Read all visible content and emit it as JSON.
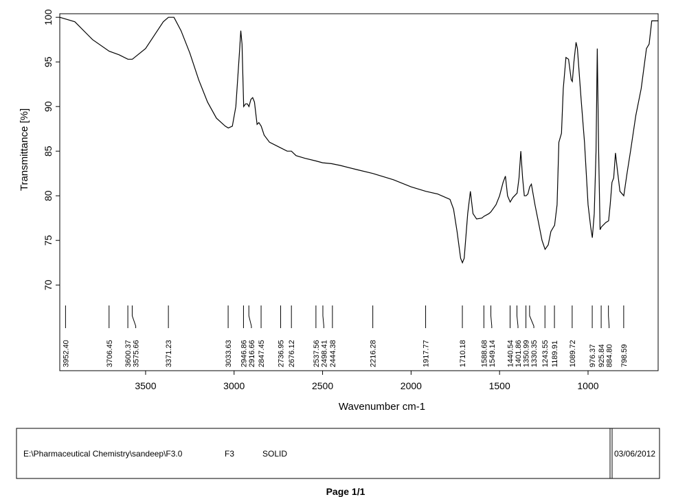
{
  "chart_data": {
    "type": "line",
    "x_label": "Wavenumber cm-1",
    "y_label": "Transmittance [%]",
    "x": [
      3985,
      3900,
      3800,
      3706,
      3650,
      3600,
      3575,
      3500,
      3450,
      3400,
      3371,
      3340,
      3300,
      3250,
      3200,
      3150,
      3100,
      3050,
      3033,
      3010,
      2990,
      2970,
      2962,
      2955,
      2946,
      2935,
      2925,
      2916,
      2905,
      2895,
      2885,
      2870,
      2860,
      2847,
      2830,
      2800,
      2750,
      2700,
      2676,
      2650,
      2600,
      2537,
      2500,
      2450,
      2400,
      2300,
      2216,
      2100,
      2000,
      1917,
      1850,
      1780,
      1760,
      1740,
      1720,
      1710,
      1700,
      1680,
      1665,
      1650,
      1630,
      1600,
      1588,
      1560,
      1549,
      1520,
      1500,
      1480,
      1467,
      1455,
      1440,
      1425,
      1401,
      1390,
      1380,
      1370,
      1360,
      1350,
      1340,
      1330,
      1320,
      1300,
      1280,
      1260,
      1243,
      1225,
      1210,
      1189,
      1175,
      1165,
      1150,
      1140,
      1125,
      1110,
      1095,
      1089,
      1080,
      1068,
      1060,
      1040,
      1020,
      1000,
      985,
      976,
      965,
      955,
      948,
      940,
      932,
      925,
      910,
      900,
      884,
      875,
      865,
      855,
      845,
      835,
      820,
      798,
      780,
      760,
      730,
      700,
      670,
      655,
      640,
      604
    ],
    "series": [
      {
        "color": "#000000",
        "values": [
          100,
          99.5,
          97.5,
          96.2,
          95.8,
          95.3,
          95.3,
          96.5,
          98,
          99.5,
          100,
          100,
          98.5,
          96,
          93,
          90.5,
          88.7,
          87.8,
          87.6,
          87.8,
          90,
          96,
          98.5,
          97,
          90,
          90.3,
          90.3,
          90,
          90.8,
          91,
          90.5,
          88,
          88.2,
          87.8,
          86.8,
          86,
          85.5,
          85,
          85,
          84.5,
          84.2,
          83.9,
          83.7,
          83.6,
          83.4,
          82.9,
          82.5,
          81.8,
          81,
          80.5,
          80.2,
          79.6,
          78.5,
          76,
          73,
          72.5,
          73,
          78,
          80.5,
          78,
          77.4,
          77.5,
          77.7,
          78,
          78.2,
          79,
          80,
          81.5,
          82.2,
          80,
          79.3,
          79.8,
          80.3,
          82,
          85,
          82,
          80,
          80,
          80.2,
          81,
          81.3,
          79,
          77,
          75,
          74,
          74.5,
          76,
          76.7,
          79,
          86,
          87,
          92,
          95.5,
          95.3,
          93,
          92.8,
          95,
          97.2,
          96.5,
          91,
          86,
          79,
          76.5,
          75.3,
          78,
          85,
          96.5,
          85,
          76.2,
          76.5,
          76.8,
          77,
          77.2,
          79,
          81.5,
          82,
          84.8,
          83,
          80.5,
          80,
          82.5,
          85,
          89,
          92,
          96.5,
          97,
          99.6,
          99.6
        ]
      }
    ],
    "xlim": [
      3985,
      604
    ],
    "ylim": [
      60.4,
      100.4
    ],
    "xticks": [
      3500,
      3000,
      2500,
      2000,
      1500,
      1000
    ],
    "yticks": [
      70,
      75,
      80,
      85,
      90,
      95,
      100
    ],
    "peaks": [
      {
        "value": 3952.4,
        "label": "3952.40"
      },
      {
        "value": 3706.45,
        "label": "3706.45"
      },
      {
        "value": 3600.37,
        "label": "3600.37"
      },
      {
        "value": 3575.66,
        "label": "3575.66"
      },
      {
        "value": 3371.23,
        "label": "3371.23"
      },
      {
        "value": 3033.63,
        "label": "3033.63"
      },
      {
        "value": 2946.86,
        "label": "2946.86"
      },
      {
        "value": 2916.66,
        "label": "2916.66"
      },
      {
        "value": 2847.45,
        "label": "2847.45"
      },
      {
        "value": 2736.95,
        "label": "2736.95"
      },
      {
        "value": 2676.12,
        "label": "2676.12"
      },
      {
        "value": 2537.56,
        "label": "2537.56"
      },
      {
        "value": 2498.41,
        "label": "2498.41"
      },
      {
        "value": 2444.38,
        "label": "2444.38"
      },
      {
        "value": 2216.28,
        "label": "2216.28"
      },
      {
        "value": 1917.77,
        "label": "1917.77"
      },
      {
        "value": 1710.18,
        "label": "1710.18"
      },
      {
        "value": 1588.68,
        "label": "1588.68"
      },
      {
        "value": 1549.14,
        "label": "1549.14"
      },
      {
        "value": 1440.54,
        "label": "1440.54"
      },
      {
        "value": 1401.86,
        "label": "1401.86"
      },
      {
        "value": 1350.99,
        "label": "1350.99"
      },
      {
        "value": 1330.35,
        "label": "1330.35"
      },
      {
        "value": 1243.55,
        "label": "1243.55"
      },
      {
        "value": 1189.91,
        "label": "1189.91"
      },
      {
        "value": 1089.72,
        "label": "1089.72"
      },
      {
        "value": 976.37,
        "label": "976.37"
      },
      {
        "value": 925.84,
        "label": "925.84"
      },
      {
        "value": 884.8,
        "label": "884.80"
      },
      {
        "value": 798.59,
        "label": "798.59"
      }
    ]
  },
  "footer": {
    "path": "E:\\Pharmaceutical Chemistry\\sandeep\\F3.0",
    "sample": "F3",
    "state": "SOLID",
    "date": "03/06/2012"
  },
  "page_label": "Page 1/1"
}
